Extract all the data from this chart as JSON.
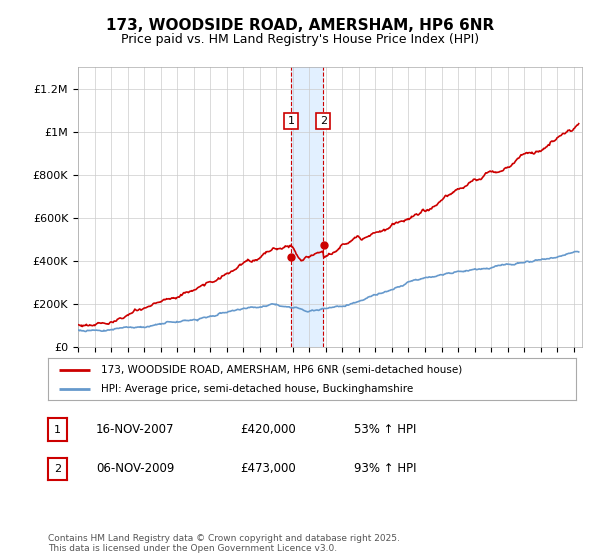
{
  "title": "173, WOODSIDE ROAD, AMERSHAM, HP6 6NR",
  "subtitle": "Price paid vs. HM Land Registry's House Price Index (HPI)",
  "xlim_start": 1995.0,
  "xlim_end": 2025.5,
  "ylim_min": 0,
  "ylim_max": 1300000,
  "yticks": [
    0,
    200000,
    400000,
    600000,
    800000,
    1000000,
    1200000
  ],
  "ytick_labels": [
    "£0",
    "£200K",
    "£400K",
    "£600K",
    "£800K",
    "£1M",
    "£1.2M"
  ],
  "transaction1_date": 2007.88,
  "transaction1_price": 420000,
  "transaction2_date": 2009.85,
  "transaction2_price": 473000,
  "highlight_xmin": 2007.88,
  "highlight_xmax": 2009.85,
  "red_line_color": "#cc0000",
  "blue_line_color": "#6699cc",
  "highlight_fill": "#ddeeff",
  "legend_label_red": "173, WOODSIDE ROAD, AMERSHAM, HP6 6NR (semi-detached house)",
  "legend_label_blue": "HPI: Average price, semi-detached house, Buckinghamshire",
  "table_row1": [
    "1",
    "16-NOV-2007",
    "£420,000",
    "53% ↑ HPI"
  ],
  "table_row2": [
    "2",
    "06-NOV-2009",
    "£473,000",
    "93% ↑ HPI"
  ],
  "footer": "Contains HM Land Registry data © Crown copyright and database right 2025.\nThis data is licensed under the Open Government Licence v3.0.",
  "background_color": "#ffffff",
  "grid_color": "#cccccc"
}
